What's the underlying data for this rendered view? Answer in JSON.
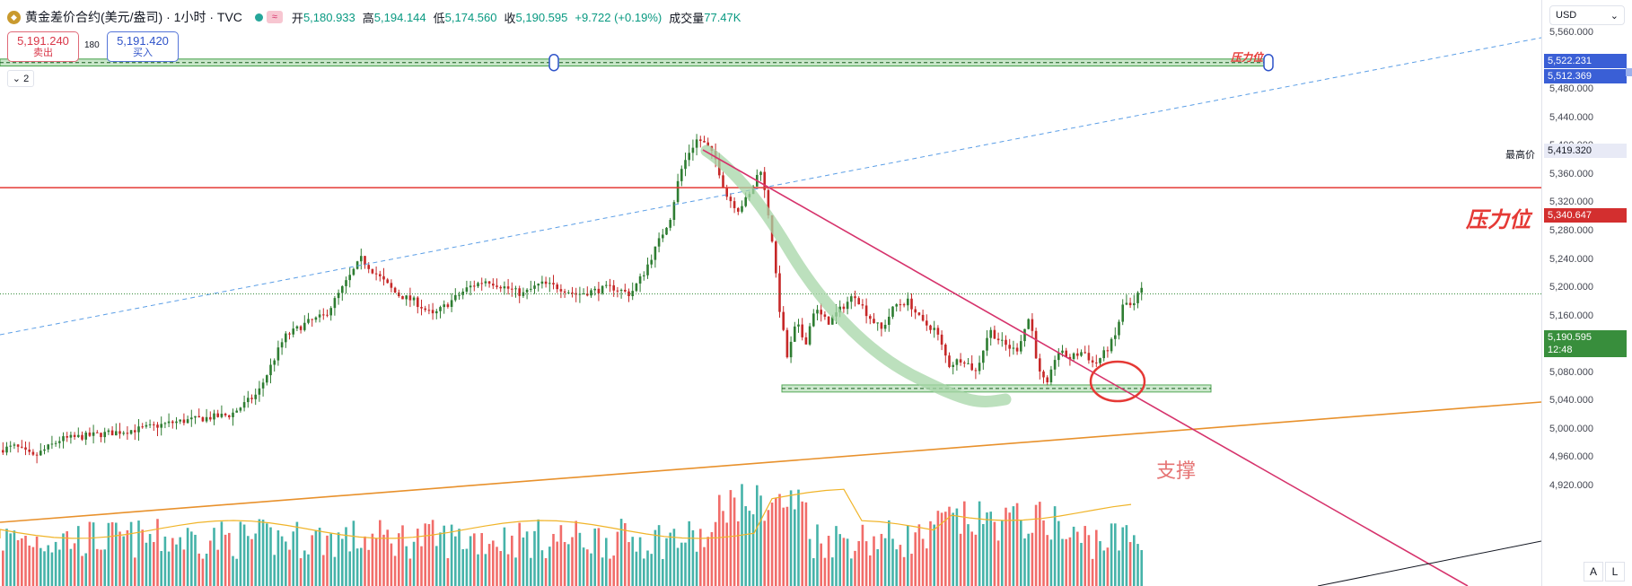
{
  "header": {
    "symbol_name": "黄金差价合约(美元/盎司)",
    "interval": "1小时",
    "source": "TVC",
    "open_label": "开",
    "open_value": "5,180.933",
    "high_label": "高",
    "high_value": "5,194.144",
    "low_label": "低",
    "low_value": "5,174.560",
    "close_label": "收",
    "close_value": "5,190.595",
    "change": "+9.722 (+0.19%)",
    "volume_label": "成交量",
    "volume_value": "77.47",
    "volume_unit": "K",
    "status_pill_icon": "≈"
  },
  "trade": {
    "sell_price": "5,191.240",
    "sell_label": "卖出",
    "spread": "180",
    "buy_price": "5,191.420",
    "buy_label": "买入"
  },
  "collapse": {
    "count": "2"
  },
  "annotations": {
    "resistance_small": "压力位",
    "resistance_large": "压力位",
    "support": "支撑",
    "highest_label": "最高价"
  },
  "price_axis": {
    "currency": "USD",
    "ticks": [
      "5,560.000",
      "5,520.000",
      "5,480.000",
      "5,440.000",
      "5,400.000",
      "5,360.000",
      "5,320.000",
      "5,280.000",
      "5,240.000",
      "5,200.000",
      "5,160.000",
      "5,120.000",
      "5,080.000",
      "5,040.000",
      "5,000.000",
      "4,960.000",
      "4,920.000"
    ],
    "tags": {
      "zone_top": "5,522.231",
      "zone_bottom": "5,512.369",
      "highest": "5,419.320",
      "resistance": "5,340.647",
      "last_price": "5,190.595",
      "countdown": "12:48"
    },
    "auto_btn": "A",
    "log_btn": "L"
  },
  "colors": {
    "up": "#2e7d32",
    "down": "#c62828",
    "vol_up": "#26a69a",
    "vol_down": "#ef5350",
    "resistance_line": "#e53935",
    "downtrend_line": "#d6336c",
    "uptrend_line": "#e8912c",
    "channel_line": "#5b9ee6",
    "highlight": "#a5d6a7",
    "last_price": "#388e3c"
  },
  "chart_data": {
    "type": "candlestick",
    "symbol": "黄金差价合约(美元/盎司)",
    "interval": "1小时",
    "ylim": [
      4900,
      5590
    ],
    "key_levels": {
      "resistance_zone": [
        5512.369,
        5522.231
      ],
      "highest": 5419.32,
      "resistance": 5340.647,
      "last": 5190.595,
      "support_zone": [
        5052,
        5062
      ]
    },
    "price_path": [
      [
        0,
        4970
      ],
      [
        20,
        4975
      ],
      [
        40,
        4960
      ],
      [
        70,
        4985
      ],
      [
        100,
        4990
      ],
      [
        130,
        4995
      ],
      [
        160,
        5000
      ],
      [
        200,
        5010
      ],
      [
        230,
        5015
      ],
      [
        260,
        5020
      ],
      [
        290,
        5050
      ],
      [
        320,
        5130
      ],
      [
        345,
        5150
      ],
      [
        365,
        5160
      ],
      [
        385,
        5200
      ],
      [
        405,
        5240
      ],
      [
        425,
        5215
      ],
      [
        445,
        5190
      ],
      [
        465,
        5180
      ],
      [
        485,
        5160
      ],
      [
        505,
        5180
      ],
      [
        525,
        5200
      ],
      [
        545,
        5210
      ],
      [
        565,
        5200
      ],
      [
        585,
        5190
      ],
      [
        605,
        5205
      ],
      [
        625,
        5200
      ],
      [
        645,
        5190
      ],
      [
        665,
        5195
      ],
      [
        685,
        5200
      ],
      [
        705,
        5190
      ],
      [
        720,
        5220
      ],
      [
        735,
        5260
      ],
      [
        750,
        5300
      ],
      [
        760,
        5360
      ],
      [
        770,
        5390
      ],
      [
        780,
        5410
      ],
      [
        790,
        5400
      ],
      [
        800,
        5380
      ],
      [
        812,
        5330
      ],
      [
        825,
        5310
      ],
      [
        838,
        5330
      ],
      [
        850,
        5370
      ],
      [
        862,
        5280
      ],
      [
        870,
        5180
      ],
      [
        880,
        5100
      ],
      [
        890,
        5150
      ],
      [
        900,
        5120
      ],
      [
        910,
        5170
      ],
      [
        925,
        5150
      ],
      [
        940,
        5170
      ],
      [
        955,
        5190
      ],
      [
        970,
        5160
      ],
      [
        985,
        5140
      ],
      [
        1000,
        5175
      ],
      [
        1015,
        5180
      ],
      [
        1030,
        5150
      ],
      [
        1045,
        5140
      ],
      [
        1060,
        5090
      ],
      [
        1075,
        5100
      ],
      [
        1090,
        5080
      ],
      [
        1105,
        5140
      ],
      [
        1120,
        5120
      ],
      [
        1135,
        5110
      ],
      [
        1150,
        5160
      ],
      [
        1160,
        5080
      ],
      [
        1170,
        5060
      ],
      [
        1180,
        5110
      ],
      [
        1195,
        5100
      ],
      [
        1210,
        5110
      ],
      [
        1222,
        5090
      ],
      [
        1235,
        5110
      ],
      [
        1245,
        5130
      ],
      [
        1255,
        5180
      ],
      [
        1265,
        5170
      ],
      [
        1272,
        5195
      ]
    ],
    "volume_range": [
      0,
      130
    ]
  }
}
